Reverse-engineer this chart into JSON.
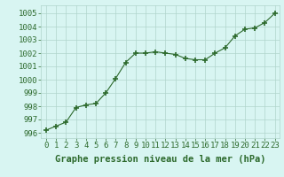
{
  "x": [
    0,
    1,
    2,
    3,
    4,
    5,
    6,
    7,
    8,
    9,
    10,
    11,
    12,
    13,
    14,
    15,
    16,
    17,
    18,
    19,
    20,
    21,
    22,
    23
  ],
  "y": [
    996.2,
    996.5,
    996.8,
    997.9,
    998.1,
    998.2,
    999.0,
    1000.1,
    1001.3,
    1002.0,
    1002.0,
    1002.1,
    1002.0,
    1001.9,
    1001.6,
    1001.5,
    1001.5,
    1002.0,
    1002.4,
    1003.3,
    1003.8,
    1003.9,
    1004.3,
    1005.0
  ],
  "line_color": "#2d6a2d",
  "marker_color": "#2d6a2d",
  "bg_color": "#d8f5f2",
  "grid_color": "#b0d4cc",
  "xlabel": "Graphe pression niveau de la mer (hPa)",
  "ylabel_ticks": [
    996,
    997,
    998,
    999,
    1000,
    1001,
    1002,
    1003,
    1004,
    1005
  ],
  "xlim": [
    -0.5,
    23.5
  ],
  "ylim": [
    995.6,
    1005.6
  ],
  "xlabel_fontsize": 7.5,
  "tick_fontsize": 6.5
}
